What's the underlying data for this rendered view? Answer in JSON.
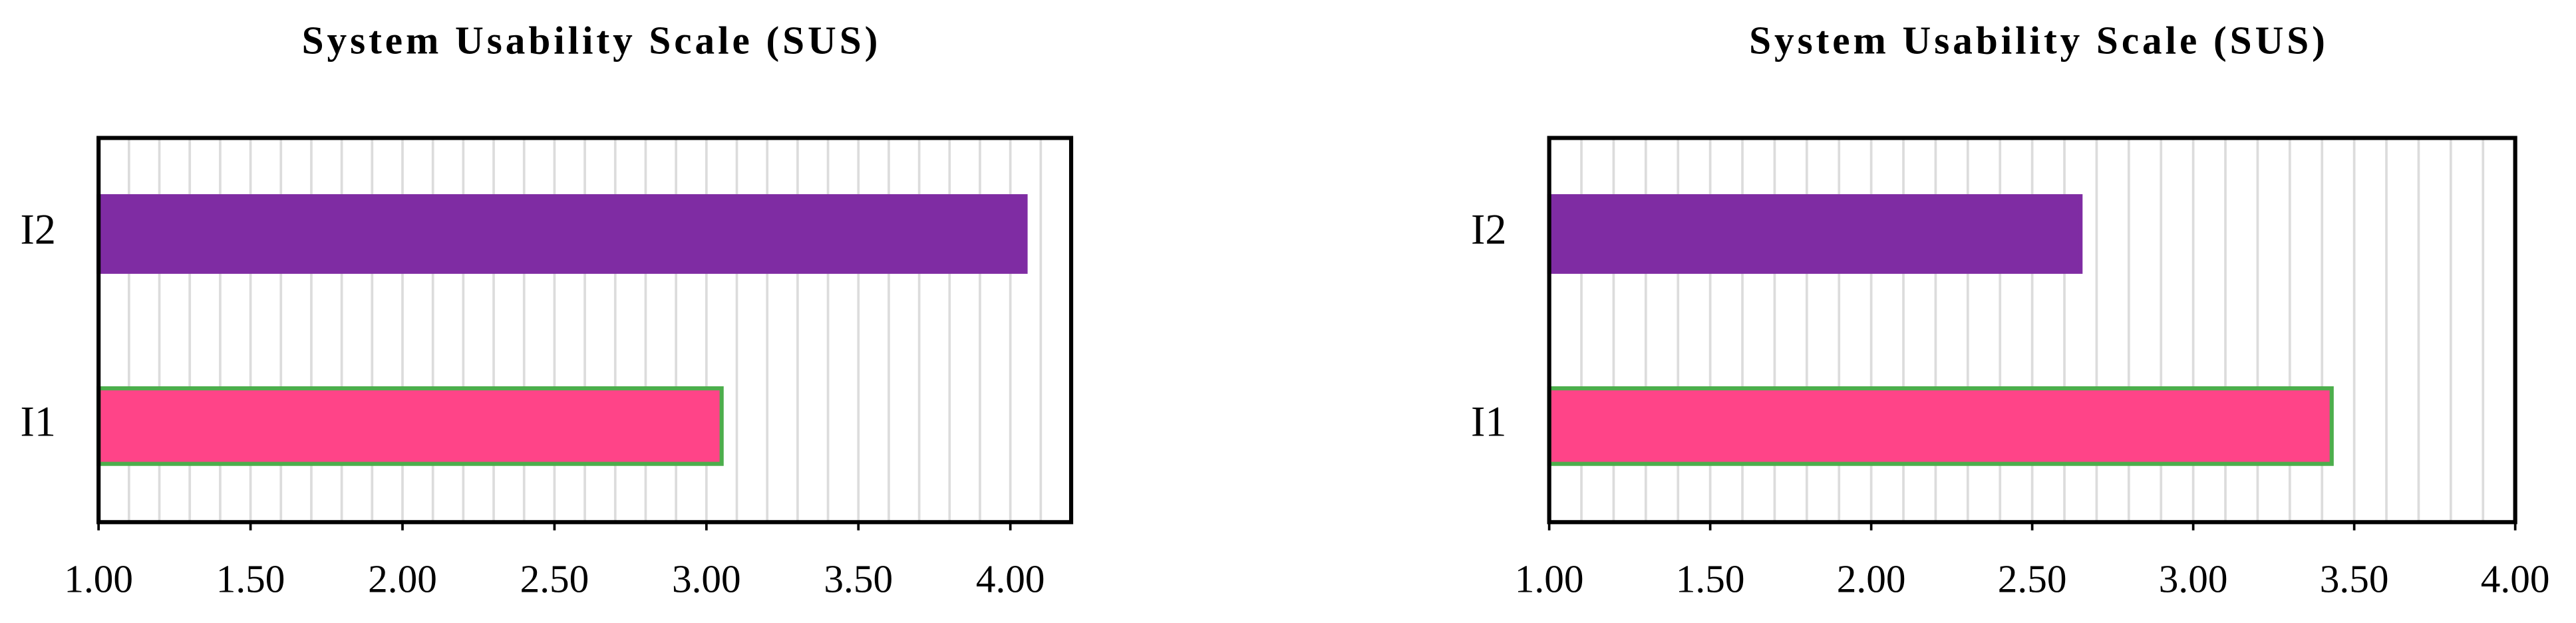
{
  "chart_data": [
    {
      "type": "barh",
      "title": "System Usability Scale (SUS)",
      "categories": [
        "I1",
        "I2"
      ],
      "values": [
        3.05,
        4.05
      ],
      "colors": [
        "#ff4488",
        "#7f2ca3"
      ],
      "edgecolors": [
        "#4cae4c",
        "#7f2ca3"
      ],
      "xlim": [
        1,
        4.2
      ],
      "xticks": [
        {
          "value": 1,
          "label": "1.00"
        },
        {
          "value": 1.5,
          "label": "1.50"
        },
        {
          "value": 2,
          "label": "2.00"
        },
        {
          "value": 2.5,
          "label": "2.50"
        },
        {
          "value": 3,
          "label": "3.00"
        },
        {
          "value": 3.5,
          "label": "3.50"
        },
        {
          "value": 4,
          "label": "4.00"
        }
      ],
      "xgrid": [
        1.1,
        1.2,
        1.3,
        1.4,
        1.5,
        1.6,
        1.7,
        1.8,
        1.9,
        2,
        2.1,
        2.2,
        2.3,
        2.4,
        2.5,
        2.6,
        2.7,
        2.8,
        2.9,
        3,
        3.1,
        3.2,
        3.3,
        3.4,
        3.5,
        3.6,
        3.7,
        3.8,
        3.9,
        4,
        4.1
      ]
    },
    {
      "type": "barh",
      "title": "System Usability Scale (SUS)",
      "categories": [
        "I1",
        "I2"
      ],
      "values": [
        3.43,
        2.65
      ],
      "colors": [
        "#ff4488",
        "#7f2ca3"
      ],
      "edgecolors": [
        "#4cae4c",
        "#7f2ca3"
      ],
      "xlim": [
        1,
        4
      ],
      "xticks": [
        {
          "value": 1,
          "label": "1.00"
        },
        {
          "value": 1.5,
          "label": "1.50"
        },
        {
          "value": 2,
          "label": "2.00"
        },
        {
          "value": 2.5,
          "label": "2.50"
        },
        {
          "value": 3,
          "label": "3.00"
        },
        {
          "value": 3.5,
          "label": "3.50"
        },
        {
          "value": 4,
          "label": "4.00"
        }
      ],
      "xgrid": [
        1.1,
        1.2,
        1.3,
        1.4,
        1.5,
        1.6,
        1.7,
        1.8,
        1.9,
        2,
        2.1,
        2.2,
        2.3,
        2.4,
        2.5,
        2.6,
        2.7,
        2.8,
        2.9,
        3,
        3.1,
        3.2,
        3.3,
        3.4,
        3.5,
        3.6,
        3.7,
        3.8,
        3.9
      ]
    }
  ]
}
